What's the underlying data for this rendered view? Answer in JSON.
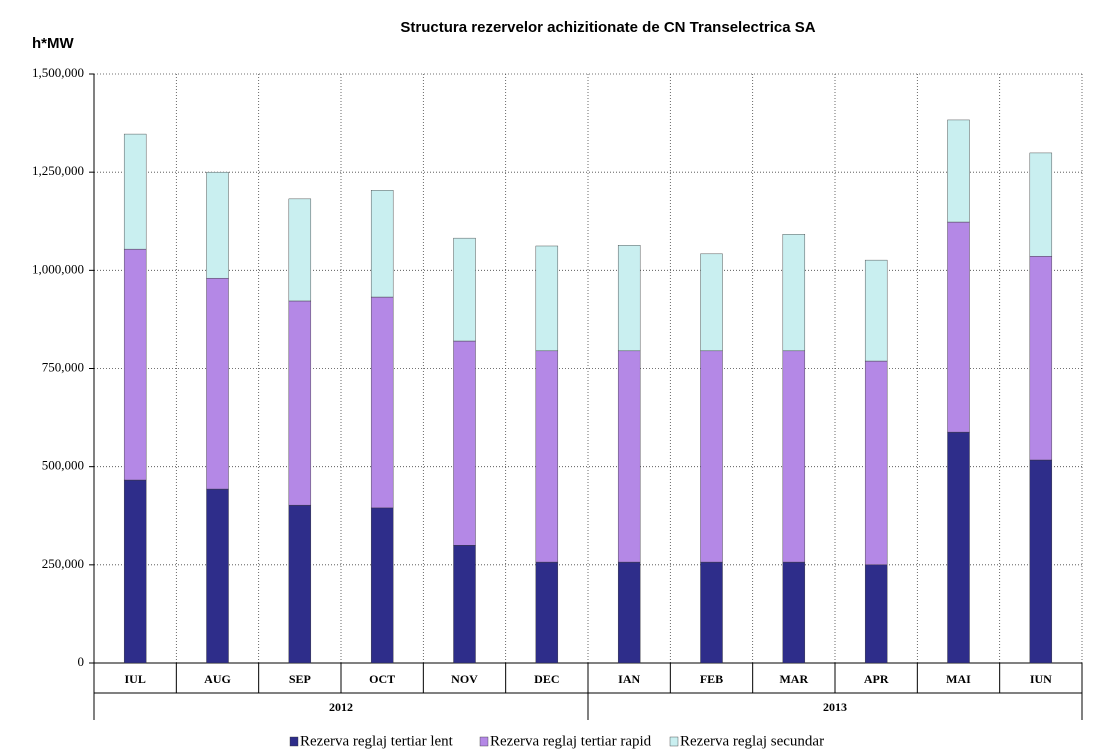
{
  "chart_data": {
    "type": "stacked-bar",
    "title": "Structura rezervelor achizitionate de CN Transelectrica SA",
    "y_label": "h*MW",
    "categories": [
      "IUL",
      "AUG",
      "SEP",
      "OCT",
      "NOV",
      "DEC",
      "IAN",
      "FEB",
      "MAR",
      "APR",
      "MAI",
      "IUN"
    ],
    "groups": [
      "2012",
      "2013"
    ],
    "series": [
      {
        "name": "Rezerva reglaj tertiar lent",
        "color": "#2e2d8a",
        "values": [
          466000,
          443000,
          402000,
          395000,
          300000,
          257000,
          257000,
          257000,
          257000,
          250000,
          588000,
          517000
        ]
      },
      {
        "name": "Rezerva reglaj tertiar rapid",
        "color": "#b488e6",
        "values": [
          588000,
          537000,
          520000,
          537000,
          520000,
          538000,
          538000,
          538000,
          538000,
          519000,
          535000,
          519000
        ]
      },
      {
        "name": "Rezerva reglaj secundar",
        "color": "#c9eff0",
        "values": [
          293000,
          270000,
          260000,
          272000,
          262000,
          267000,
          269000,
          247000,
          297000,
          257000,
          260000,
          263000
        ]
      }
    ],
    "ylim": [
      0,
      1500000
    ],
    "yticks": [
      0,
      {
        "value": 250000,
        "label": "250,000"
      },
      {
        "value": 500000,
        "label": "500,000"
      },
      {
        "value": 750000,
        "label": "750,000"
      },
      {
        "value": 1000000,
        "label": "1,000,000"
      },
      {
        "value": 1250000,
        "label": "1,250,000"
      },
      {
        "value": 1500000,
        "label": "1,500,000"
      }
    ],
    "grid": true
  }
}
